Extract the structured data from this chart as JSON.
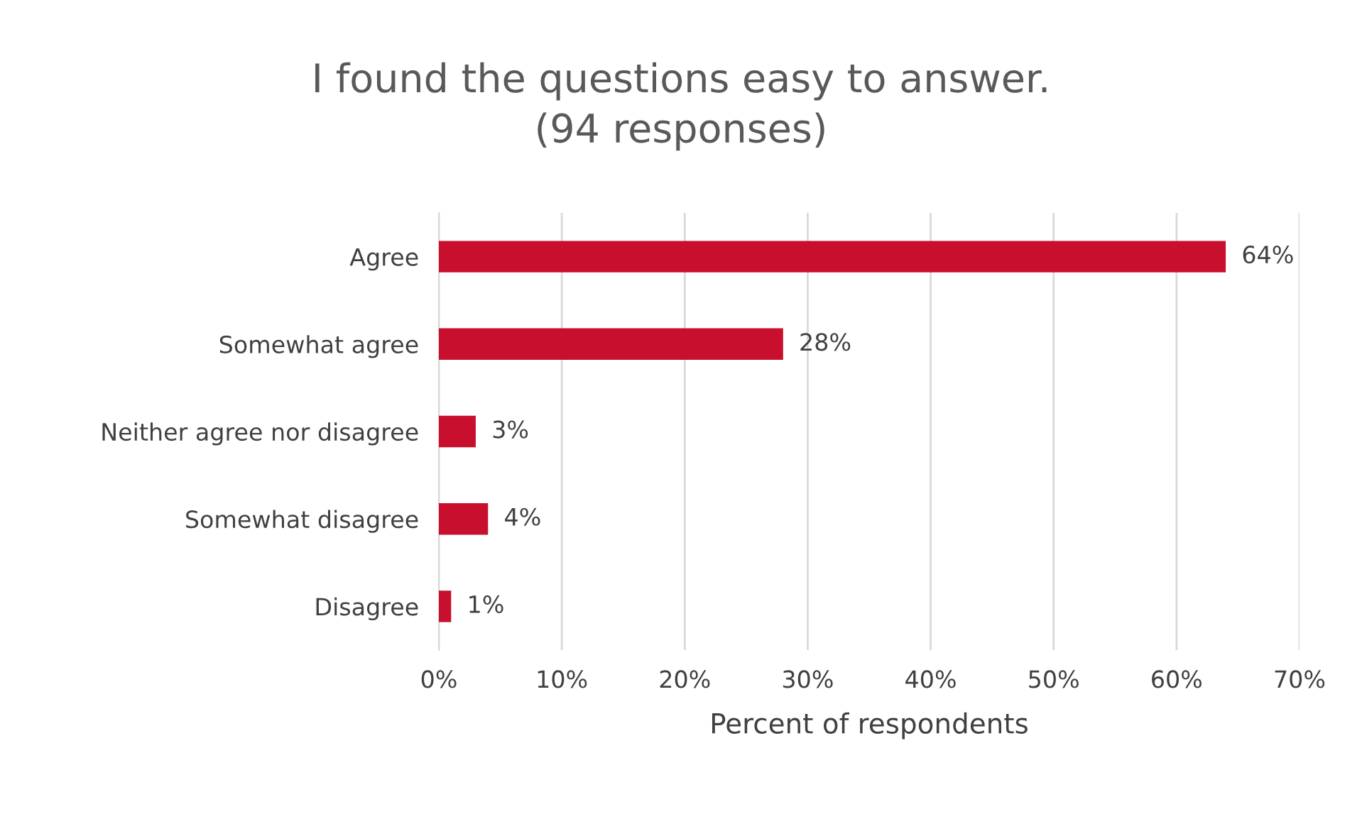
{
  "chart_data": {
    "type": "bar",
    "orientation": "horizontal",
    "title": "I found the questions easy to answer.\n(94 responses)",
    "xlabel": "Percent of respondents",
    "categories": [
      "Agree",
      "Somewhat agree",
      "Neither agree nor disagree",
      "Somewhat disagree",
      "Disagree"
    ],
    "values": [
      64,
      28,
      3,
      4,
      1
    ],
    "value_labels": [
      "64%",
      "28%",
      "3%",
      "4%",
      "1%"
    ],
    "color": "#c8102e",
    "xlim": [
      0,
      70
    ],
    "xticks": [
      {
        "value": 0,
        "label": "0%"
      },
      {
        "value": 10,
        "label": "10%"
      },
      {
        "value": 20,
        "label": "20%"
      },
      {
        "value": 30,
        "label": "30%"
      },
      {
        "value": 40,
        "label": "40%"
      },
      {
        "value": 50,
        "label": "50%"
      },
      {
        "value": 60,
        "label": "60%"
      },
      {
        "value": 70,
        "label": "70%"
      }
    ],
    "grid": "x",
    "legend": false
  }
}
